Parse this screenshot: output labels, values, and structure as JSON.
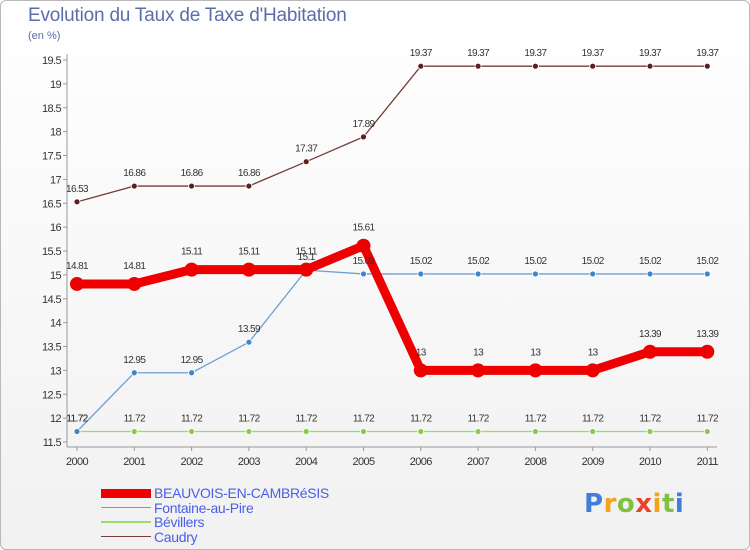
{
  "header": {
    "title": "Evolution du Taux de Taxe d'Habitation",
    "subtitle": "(en %)"
  },
  "logo": {
    "text": "Proxiti"
  },
  "chart_data": {
    "type": "line",
    "x": [
      "2000",
      "2001",
      "2002",
      "2003",
      "2004",
      "2005",
      "2006",
      "2007",
      "2008",
      "2009",
      "2010",
      "2011"
    ],
    "ylim": [
      11.5,
      19.5
    ],
    "yticks": [
      "11.5",
      "12",
      "12.5",
      "13",
      "13.5",
      "14",
      "14.5",
      "15",
      "15.5",
      "16",
      "16.5",
      "17",
      "17.5",
      "18",
      "18.5",
      "19",
      "19.5"
    ],
    "grid": false,
    "legend_position": "bottom-left",
    "series": [
      {
        "name": "BEAUVOIS-EN-CAMBRéSIS",
        "color": "#ee0000",
        "marker_color": "#ee0000",
        "values": [
          14.81,
          14.81,
          15.11,
          15.11,
          15.11,
          15.61,
          13,
          13,
          13,
          13,
          13.39,
          13.39
        ],
        "labels": [
          "14.81",
          "14.81",
          "15.11",
          "15.11",
          "15.11",
          "15.61",
          "13",
          "13",
          "13",
          "13",
          "13.39",
          "13.39"
        ]
      },
      {
        "name": "Fontaine-au-Pire",
        "color": "#6e9fd0",
        "marker_color": "#3a86cf",
        "values": [
          11.72,
          12.95,
          12.95,
          13.59,
          15.1,
          15.02,
          15.02,
          15.02,
          15.02,
          15.02,
          15.02,
          15.02
        ],
        "labels": [
          "11.72",
          "12.95",
          "12.95",
          "13.59",
          "15.1",
          "15.02",
          "15.02",
          "15.02",
          "15.02",
          "15.02",
          "15.02",
          "15.02"
        ]
      },
      {
        "name": "Bévillers",
        "color": "#99dd66",
        "marker_color": "#88cc44",
        "values": [
          11.72,
          11.72,
          11.72,
          11.72,
          11.72,
          11.72,
          11.72,
          11.72,
          11.72,
          11.72,
          11.72,
          11.72
        ],
        "labels": [
          "11.72",
          "11.72",
          "11.72",
          "11.72",
          "11.72",
          "11.72",
          "11.72",
          "11.72",
          "11.72",
          "11.72",
          "11.72",
          "11.72"
        ]
      },
      {
        "name": "Caudry",
        "color": "#7a3b3b",
        "marker_color": "#5c1f1f",
        "values": [
          16.53,
          16.86,
          16.86,
          16.86,
          17.37,
          17.89,
          19.37,
          19.37,
          19.37,
          19.37,
          19.37,
          19.37
        ],
        "labels": [
          "16.53",
          "16.86",
          "16.86",
          "16.86",
          "17.37",
          "17.89",
          "19.37",
          "19.37",
          "19.37",
          "19.37",
          "19.37",
          "19.37"
        ]
      }
    ]
  }
}
